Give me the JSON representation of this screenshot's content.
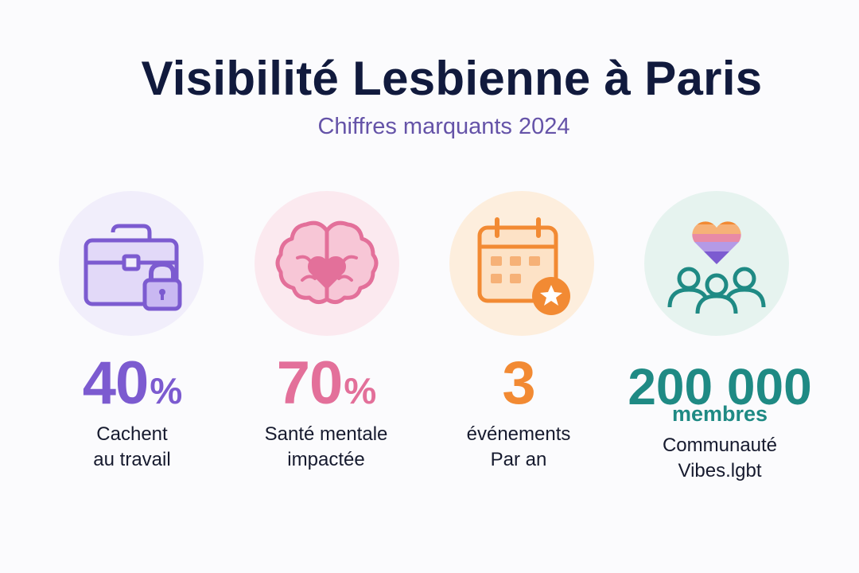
{
  "header": {
    "title": "Visibilité Lesbienne à Paris",
    "subtitle": "Chiffres marquants 2024"
  },
  "colors": {
    "title": "#111a3d",
    "subtitle": "#6553a8",
    "purple": "#7c5bd0",
    "pink": "#e3709a",
    "orange": "#f28a33",
    "teal": "#1f8a84"
  },
  "stats": [
    {
      "icon": "briefcase-lock-icon",
      "value": "40",
      "unit": "%",
      "label_line1": "Cachent",
      "label_line2": "au travail"
    },
    {
      "icon": "brain-heart-icon",
      "value": "70",
      "unit": "%",
      "label_line1": "Santé mentale",
      "label_line2": "impactée"
    },
    {
      "icon": "calendar-star-icon",
      "value": "3",
      "label_line1": "événements",
      "label_line2": "Par an"
    },
    {
      "icon": "community-heart-icon",
      "value": "200 000",
      "sub_value": "membres",
      "label_line1": "Communauté",
      "label_line2": "Vibes.lgbt"
    }
  ]
}
